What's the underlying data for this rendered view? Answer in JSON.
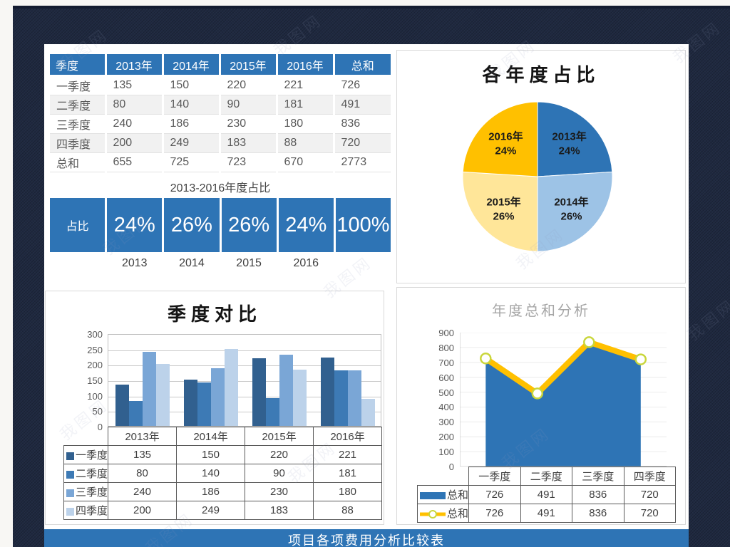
{
  "watermark_text": "我图网",
  "summary_table": {
    "headers": [
      "季度",
      "2013年",
      "2014年",
      "2015年",
      "2016年",
      "总和"
    ],
    "rows": [
      {
        "label": "一季度",
        "values": [
          "135",
          "150",
          "220",
          "221",
          "726"
        ]
      },
      {
        "label": "二季度",
        "values": [
          "80",
          "140",
          "90",
          "181",
          "491"
        ]
      },
      {
        "label": "三季度",
        "values": [
          "240",
          "186",
          "230",
          "180",
          "836"
        ]
      },
      {
        "label": "四季度",
        "values": [
          "200",
          "249",
          "183",
          "88",
          "720"
        ]
      },
      {
        "label": "总和",
        "values": [
          "655",
          "725",
          "723",
          "670",
          "2773"
        ]
      }
    ]
  },
  "ratio": {
    "title": "2013-2016年度占比",
    "row_label": "占比",
    "values": [
      "24%",
      "26%",
      "26%",
      "24%",
      "100%"
    ],
    "year_labels": [
      "2013",
      "2014",
      "2015",
      "2016"
    ]
  },
  "chart_data": [
    {
      "type": "pie",
      "title": "各年度占比",
      "labels": [
        "2013年",
        "2014年",
        "2015年",
        "2016年"
      ],
      "values": [
        24,
        26,
        26,
        24
      ],
      "unit": "%",
      "colors": [
        "#2e74b5",
        "#9dc3e6",
        "#ffe699",
        "#ffc000"
      ],
      "legend_position": "labels-inside"
    },
    {
      "type": "bar",
      "title": "季度对比",
      "categories": [
        "2013年",
        "2014年",
        "2015年",
        "2016年"
      ],
      "series": [
        {
          "name": "一季度",
          "values": [
            135,
            150,
            220,
            221
          ],
          "color": "#31608f"
        },
        {
          "name": "二季度",
          "values": [
            80,
            140,
            90,
            181
          ],
          "color": "#3d7ab5"
        },
        {
          "name": "三季度",
          "values": [
            240,
            186,
            230,
            180
          ],
          "color": "#7aa6d6"
        },
        {
          "name": "四季度",
          "values": [
            200,
            249,
            183,
            88
          ],
          "color": "#bcd2ea"
        }
      ],
      "ylim": [
        0,
        300
      ],
      "ystep": 50,
      "grid": true,
      "legend_position": "table-left"
    },
    {
      "type": "area",
      "title": "年度总和分析",
      "categories": [
        "一季度",
        "二季度",
        "三季度",
        "四季度"
      ],
      "series": [
        {
          "name": "总和",
          "kind": "area",
          "values": [
            726,
            491,
            836,
            720
          ],
          "color": "#2e74b5"
        },
        {
          "name": "总和",
          "kind": "line",
          "values": [
            726,
            491,
            836,
            720
          ],
          "color": "#ffc000",
          "marker_fill": "#ffffff",
          "marker_stroke": "#c9d63c"
        }
      ],
      "ylim": [
        0,
        900
      ],
      "ystep": 100,
      "grid": true,
      "legend_position": "table-left"
    }
  ],
  "footer": {
    "title": "项目各项费用分析比较表"
  },
  "colors": {
    "accent_blue": "#2e74b5",
    "slide_background": "#1f2940",
    "panel_border": "#d9d9d9",
    "table_alt_row": "#f1f1f1",
    "table_text": "#595959"
  }
}
